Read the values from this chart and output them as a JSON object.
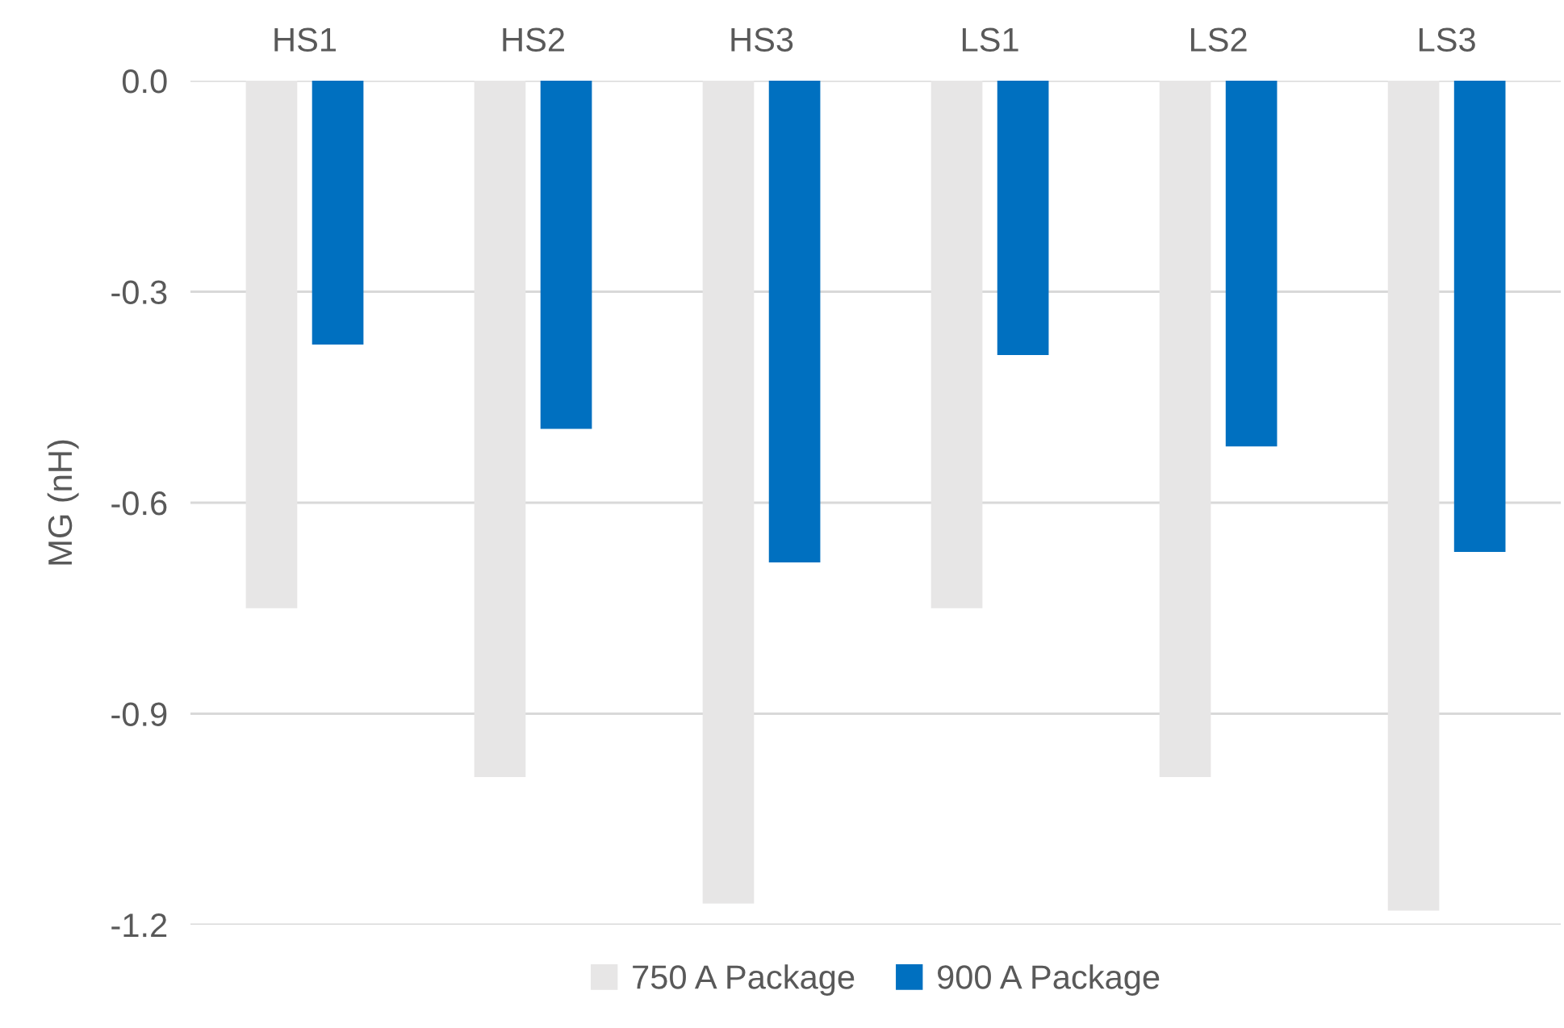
{
  "chart_data": {
    "type": "bar",
    "ylabel": "MG (nH)",
    "categories": [
      "HS1",
      "HS2",
      "HS3",
      "LS1",
      "LS2",
      "LS3"
    ],
    "series": [
      {
        "name": "750 A Package",
        "color": "#e7e6e6",
        "values": [
          -0.75,
          -0.99,
          -1.17,
          -0.75,
          -0.99,
          -1.18
        ]
      },
      {
        "name": "900 A Package",
        "color": "#0070c0",
        "values": [
          -0.375,
          -0.495,
          -0.685,
          -0.39,
          -0.52,
          -0.67
        ]
      }
    ],
    "ylim": [
      -1.2,
      0.0
    ],
    "yticks": [
      {
        "value": 0.0,
        "label": "0.0"
      },
      {
        "value": -0.3,
        "label": "-0.3"
      },
      {
        "value": -0.6,
        "label": "-0.6"
      },
      {
        "value": -0.9,
        "label": "-0.9"
      },
      {
        "value": -1.2,
        "label": "-1.2"
      }
    ],
    "grid": "y",
    "legend": "bottom"
  }
}
